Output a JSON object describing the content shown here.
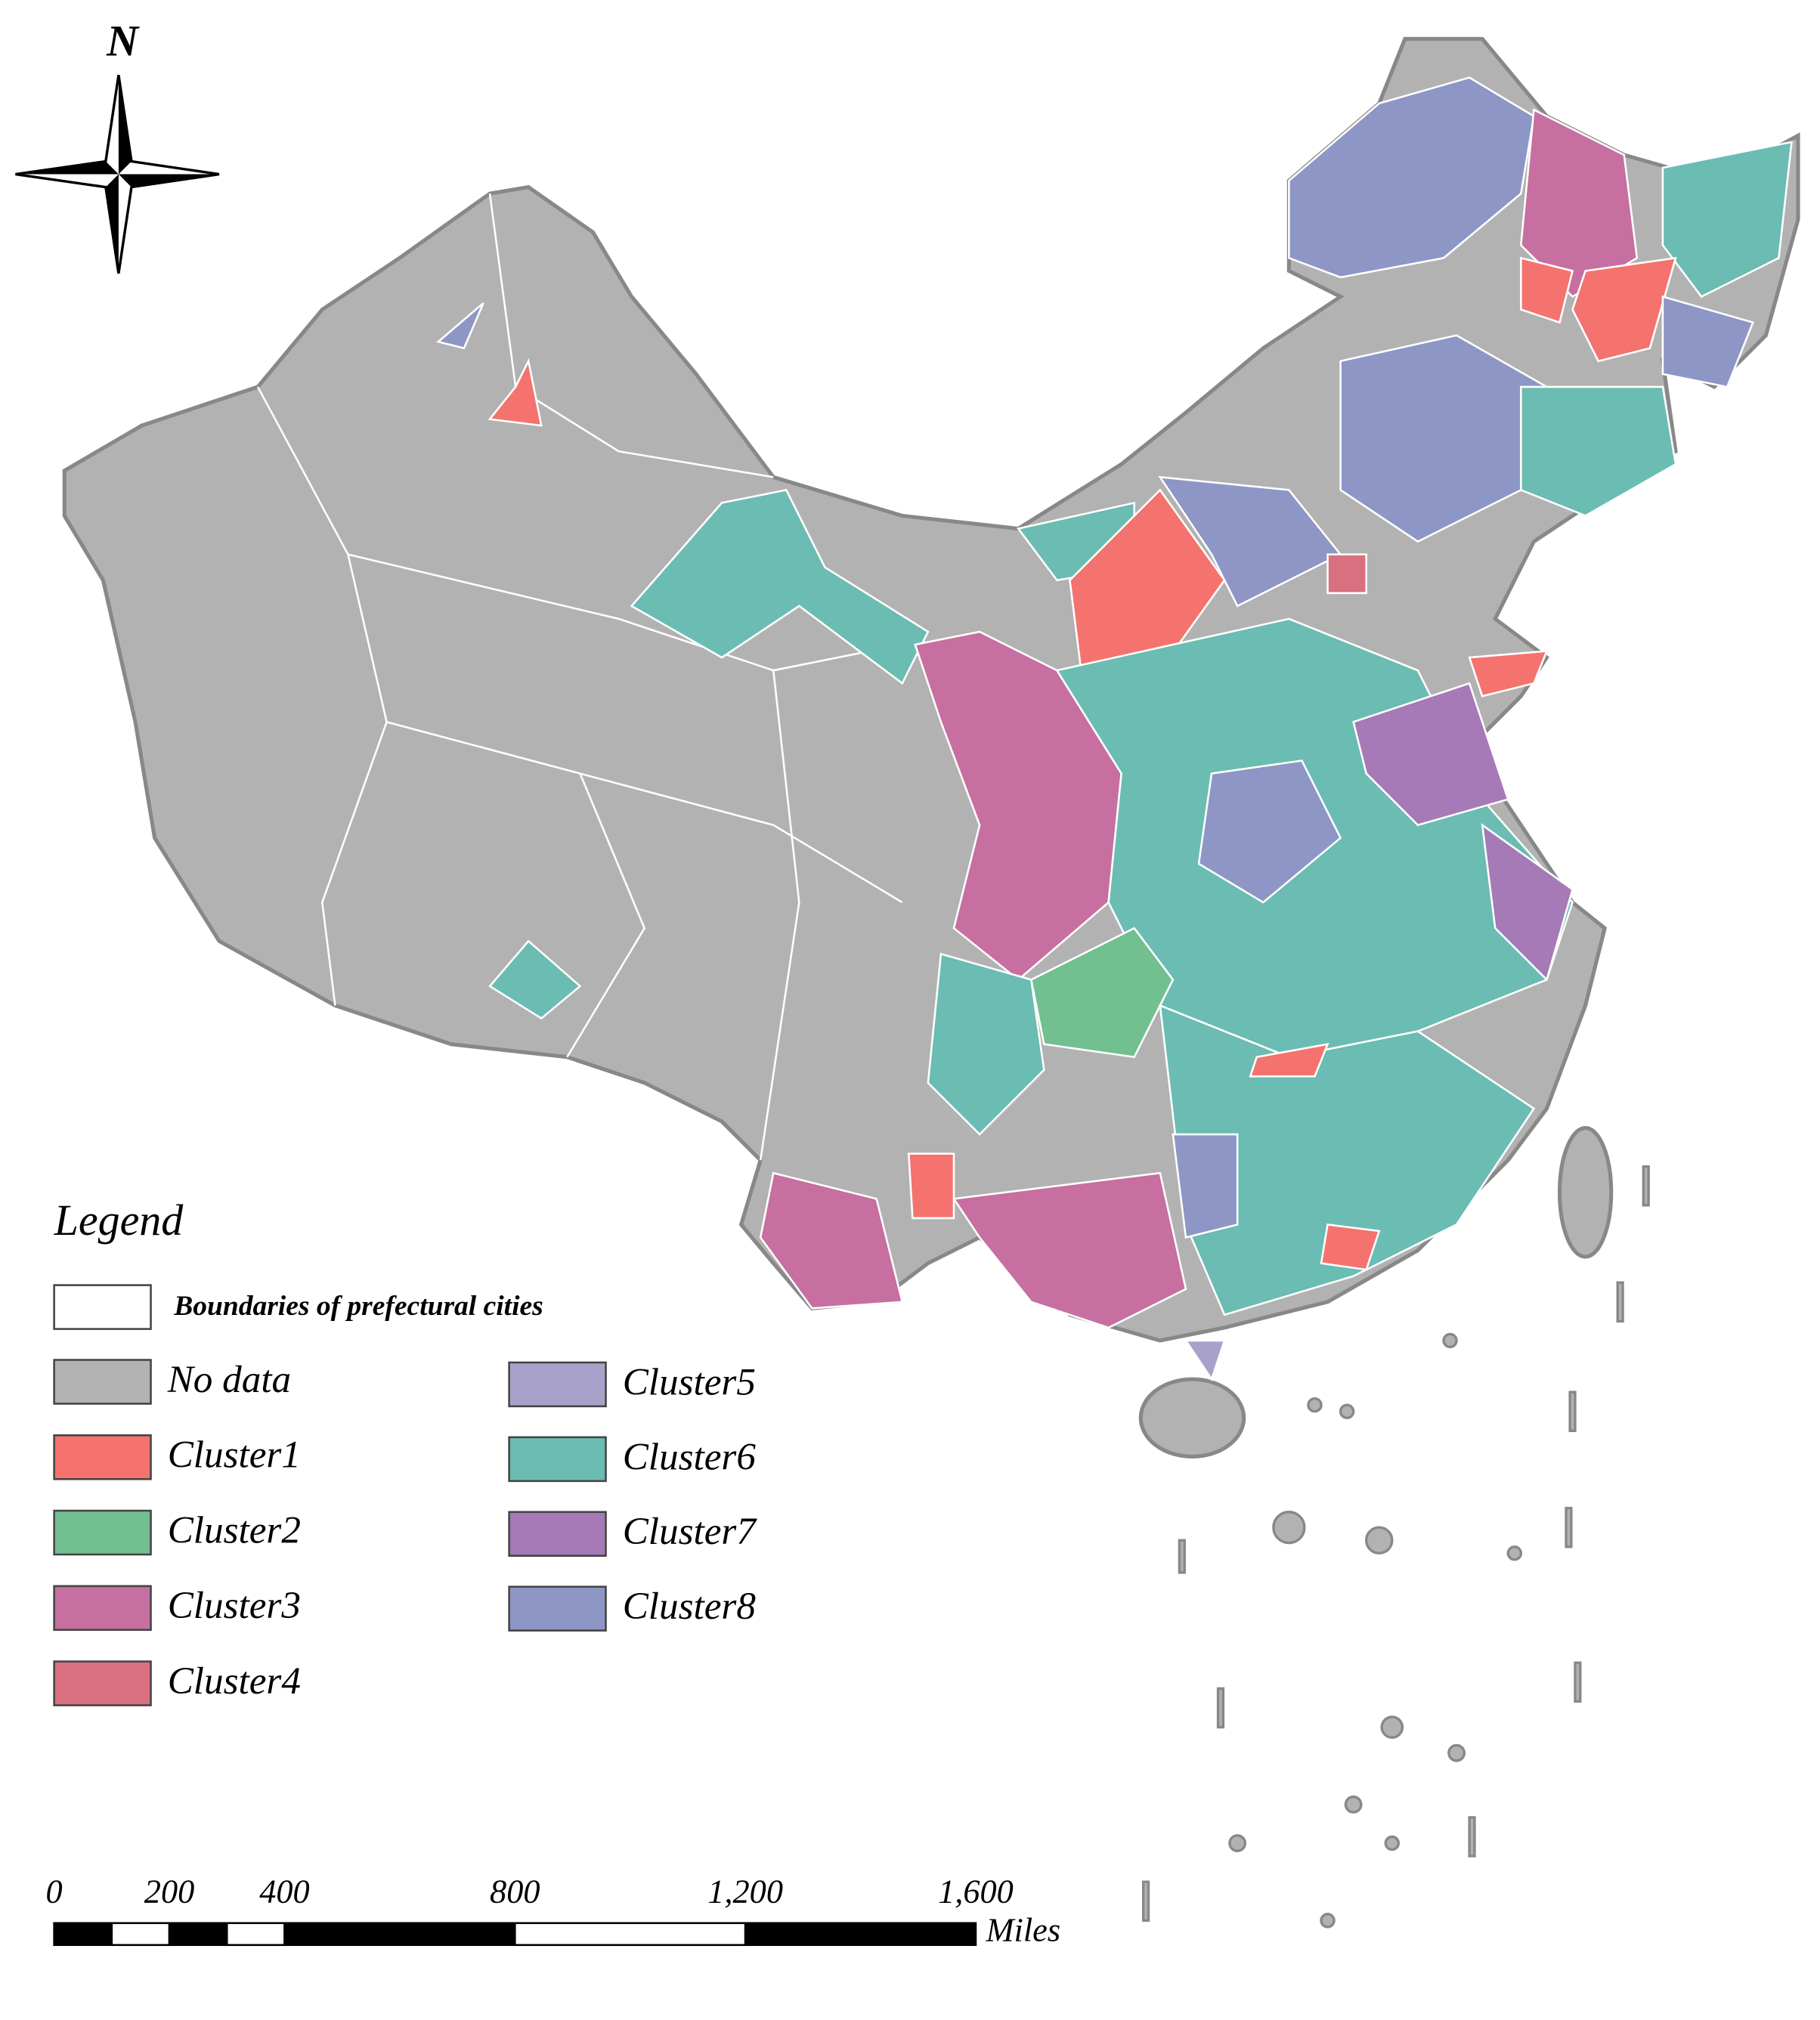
{
  "north_label": "N",
  "legend": {
    "title": "Legend",
    "items": [
      {
        "label": "Boundaries of prefectural cities",
        "color": "#ffffff"
      },
      {
        "label": "No data",
        "color": "#b2b2b2"
      },
      {
        "label": "Cluster1",
        "color": "#f4736e"
      },
      {
        "label": "Cluster2",
        "color": "#72bf90"
      },
      {
        "label": "Cluster3",
        "color": "#c66fa0"
      },
      {
        "label": "Cluster4",
        "color": "#d9707f"
      },
      {
        "label": "Cluster5",
        "color": "#a8a2cb"
      },
      {
        "label": "Cluster6",
        "color": "#6bbcb2"
      },
      {
        "label": "Cluster7",
        "color": "#a57ab6"
      },
      {
        "label": "Cluster8",
        "color": "#8e96c6"
      }
    ]
  },
  "scale_bar": {
    "ticks": [
      0,
      200,
      400,
      800,
      {
        "value": 1200,
        "label": "1,200"
      },
      {
        "value": 1600,
        "label": "1,600"
      }
    ],
    "unit": "Miles"
  }
}
